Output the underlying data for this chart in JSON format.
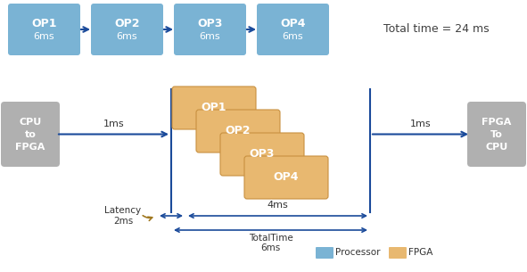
{
  "fig_width": 5.91,
  "fig_height": 3.05,
  "bg_color": "#ffffff",
  "processor_color": "#7ab3d4",
  "fpga_color": "#e8b870",
  "gray_color": "#b0b0b0",
  "arrow_color": "#1a4a9a",
  "latency_arrow_color": "#a07820",
  "top_ops": [
    "OP1",
    "OP2",
    "OP3",
    "OP4"
  ],
  "top_ms": "6ms",
  "total_time_text": "Total time = 24 ms",
  "bottom_left_label": "CPU\nto\nFPGA",
  "bottom_right_label": "FPGA\nTo\nCPU",
  "fpga_ops": [
    "OP1",
    "OP2",
    "OP3",
    "OP4"
  ],
  "legend_processor": "Processor",
  "legend_fpga": "FPGA",
  "ms1_left": "1ms",
  "ms1_right": "1ms",
  "latency_label": "Latency\n2ms",
  "inner_label": "4ms",
  "total_time_label": "TotalTime",
  "total_time_val": "6ms"
}
